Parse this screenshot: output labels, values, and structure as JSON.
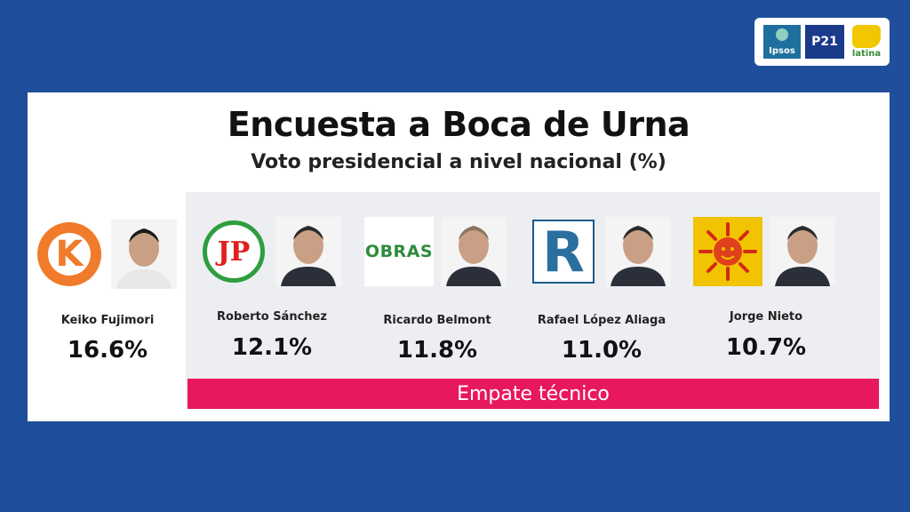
{
  "header": {
    "logos": [
      "Ipsos",
      "P21",
      "latina"
    ]
  },
  "chart_data": {
    "type": "bar",
    "title": "Encuesta a Boca de Urna",
    "subtitle": "Voto presidencial a nivel nacional (%)",
    "categories": [
      "Keiko Fujimori",
      "Roberto Sánchez",
      "Ricardo Belmont",
      "Rafael López Aliaga",
      "Jorge Nieto"
    ],
    "values": [
      16.6,
      12.1,
      11.8,
      11.0,
      10.7
    ],
    "labels": [
      "16.6%",
      "12.1%",
      "11.8%",
      "11.0%",
      "10.7%"
    ],
    "party_logo_text": [
      "K",
      "JP",
      "OBRAS",
      "R",
      ""
    ],
    "annotation": "Empate técnico",
    "colors": {
      "background": "#1f4f9c",
      "tie_bar": "#e8185e",
      "group_bg": "#eceef2"
    }
  }
}
